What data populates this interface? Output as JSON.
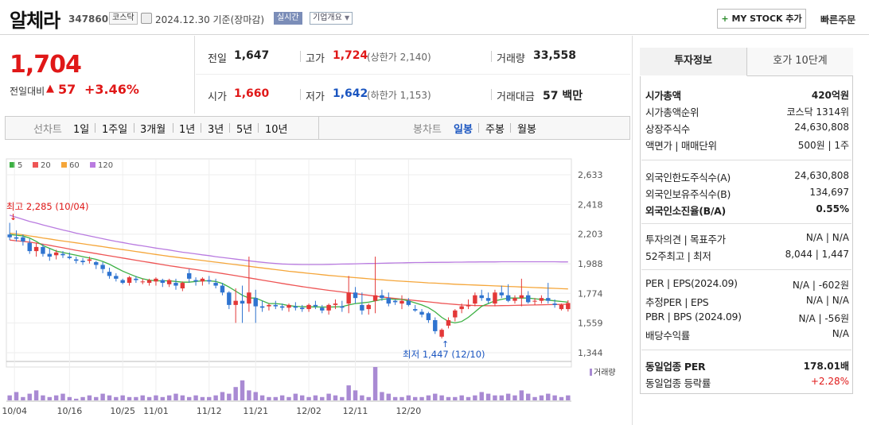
{
  "header": {
    "name": "알체라",
    "code": "347860",
    "market": "코스닥",
    "date": "2024.12.30 기준(장마감)",
    "realtime": "실시간",
    "company": "기업개요",
    "mystock": "MY STOCK 추가",
    "quick_order": "빠른주문"
  },
  "price": {
    "current": "1,704",
    "change_label": "전일대비",
    "change_arrow": "▲",
    "change_value": "57",
    "change_pct": "+3.46%"
  },
  "quote": {
    "prev_label": "전일",
    "prev": "1,647",
    "high_label": "고가",
    "high": "1,724",
    "upper_limit": "(상한가 2,140)",
    "volume_label": "거래량",
    "volume": "33,558",
    "open_label": "시가",
    "open": "1,660",
    "low_label": "저가",
    "low": "1,642",
    "lower_limit": "(하한가 1,153)",
    "amount_label": "거래대금",
    "amount": "57 백만"
  },
  "chart_tabs": {
    "line_label": "선차트",
    "periods": [
      "1일",
      "1주일",
      "3개월",
      "1년",
      "3년",
      "5년",
      "10년"
    ],
    "candle_label": "봉차트",
    "candles": [
      "일봉",
      "주봉",
      "월봉"
    ]
  },
  "legend": [
    "5",
    "20",
    "60",
    "120"
  ],
  "colors": {
    "ma5": "#3cb043",
    "ma20": "#ee5555",
    "ma60": "#f5a63a",
    "ma120": "#b97be0",
    "up": "#e33838",
    "down": "#2f74d0",
    "volume": "#a98ad3"
  },
  "annotations": {
    "high": "최고 2,285 (10/04)",
    "low": "최저 1,447 (12/10)",
    "volume_label": "거래량"
  },
  "chart_data": {
    "type": "candlestick",
    "y_ticks": [
      "2,633",
      "2,418",
      "2,203",
      "1,988",
      "1,774",
      "1,559",
      "1,344"
    ],
    "ylim": [
      1344,
      2633
    ],
    "x_ticks": [
      "10/04",
      "10/16",
      "10/25",
      "11/01",
      "11/12",
      "11/21",
      "12/02",
      "12/11",
      "12/20"
    ],
    "ohlc": [
      [
        2200,
        2285,
        2160,
        2180
      ],
      [
        2180,
        2230,
        2150,
        2170
      ],
      [
        2180,
        2200,
        2120,
        2150
      ],
      [
        2140,
        2170,
        2060,
        2080
      ],
      [
        2080,
        2140,
        2040,
        2110
      ],
      [
        2110,
        2130,
        2040,
        2060
      ],
      [
        2060,
        2100,
        2010,
        2040
      ],
      [
        2050,
        2090,
        2020,
        2070
      ],
      [
        2060,
        2080,
        2030,
        2050
      ],
      [
        2040,
        2070,
        2020,
        2030
      ],
      [
        2020,
        2040,
        1990,
        2010
      ],
      [
        2010,
        2030,
        1980,
        2000
      ],
      [
        2010,
        2040,
        1990,
        2020
      ],
      [
        2000,
        2010,
        1950,
        1980
      ],
      [
        1980,
        2000,
        1920,
        1950
      ],
      [
        1930,
        1960,
        1880,
        1900
      ],
      [
        1900,
        1920,
        1860,
        1880
      ],
      [
        1870,
        1880,
        1840,
        1850
      ],
      [
        1850,
        1900,
        1830,
        1890
      ],
      [
        1880,
        1900,
        1850,
        1870
      ],
      [
        1860,
        1880,
        1840,
        1860
      ],
      [
        1850,
        1880,
        1830,
        1870
      ],
      [
        1860,
        1890,
        1830,
        1880
      ],
      [
        1870,
        1880,
        1820,
        1850
      ],
      [
        1840,
        1880,
        1820,
        1870
      ],
      [
        1850,
        1880,
        1800,
        1830
      ],
      [
        1810,
        1860,
        1790,
        1850
      ],
      [
        1920,
        1950,
        1850,
        1880
      ],
      [
        1870,
        1890,
        1830,
        1860
      ],
      [
        1860,
        1890,
        1830,
        1880
      ],
      [
        1870,
        1900,
        1840,
        1860
      ],
      [
        1850,
        1880,
        1810,
        1830
      ],
      [
        1830,
        1850,
        1760,
        1780
      ],
      [
        1780,
        1790,
        1660,
        1690
      ],
      [
        1690,
        1810,
        1560,
        1720
      ],
      [
        1720,
        1830,
        1560,
        1700
      ],
      [
        1700,
        2040,
        1640,
        1780
      ],
      [
        1740,
        1800,
        1560,
        1680
      ],
      [
        1680,
        1720,
        1640,
        1670
      ],
      [
        1680,
        1700,
        1650,
        1690
      ],
      [
        1690,
        1720,
        1660,
        1680
      ],
      [
        1680,
        1700,
        1650,
        1670
      ],
      [
        1670,
        1700,
        1640,
        1690
      ],
      [
        1680,
        1710,
        1650,
        1670
      ],
      [
        1670,
        1690,
        1640,
        1660
      ],
      [
        1660,
        1700,
        1640,
        1690
      ],
      [
        1690,
        1720,
        1660,
        1680
      ],
      [
        1670,
        1690,
        1630,
        1650
      ],
      [
        1650,
        1700,
        1620,
        1690
      ],
      [
        1690,
        1730,
        1660,
        1700
      ],
      [
        1680,
        1720,
        1640,
        1670
      ],
      [
        1700,
        1900,
        1630,
        1780
      ],
      [
        1780,
        1820,
        1700,
        1740
      ],
      [
        1690,
        1780,
        1620,
        1650
      ],
      [
        1660,
        1700,
        1620,
        1690
      ],
      [
        1720,
        2040,
        1630,
        1760
      ],
      [
        1760,
        1800,
        1720,
        1740
      ],
      [
        1740,
        1780,
        1680,
        1700
      ],
      [
        1720,
        1730,
        1690,
        1710
      ],
      [
        1700,
        1760,
        1660,
        1720
      ],
      [
        1720,
        1740,
        1680,
        1690
      ],
      [
        1660,
        1690,
        1640,
        1650
      ],
      [
        1640,
        1660,
        1600,
        1620
      ],
      [
        1630,
        1640,
        1560,
        1580
      ],
      [
        1580,
        1600,
        1480,
        1500
      ],
      [
        1460,
        1520,
        1447,
        1510
      ],
      [
        1540,
        1600,
        1520,
        1580
      ],
      [
        1600,
        1660,
        1570,
        1650
      ],
      [
        1660,
        1700,
        1630,
        1680
      ],
      [
        1680,
        1730,
        1660,
        1690
      ],
      [
        1700,
        1780,
        1680,
        1760
      ],
      [
        1760,
        1800,
        1720,
        1740
      ],
      [
        1740,
        1780,
        1700,
        1720
      ],
      [
        1700,
        1800,
        1680,
        1780
      ],
      [
        1780,
        1830,
        1740,
        1760
      ],
      [
        1760,
        1840,
        1710,
        1720
      ],
      [
        1720,
        1760,
        1700,
        1740
      ],
      [
        1740,
        1880,
        1680,
        1760
      ],
      [
        1760,
        1790,
        1700,
        1710
      ],
      [
        1720,
        1740,
        1690,
        1720
      ],
      [
        1720,
        1760,
        1700,
        1740
      ],
      [
        1740,
        1850,
        1700,
        1720
      ],
      [
        1700,
        1730,
        1670,
        1690
      ],
      [
        1660,
        1700,
        1650,
        1690
      ],
      [
        1660,
        1724,
        1642,
        1704
      ]
    ],
    "volume": [
      3,
      5,
      2,
      4,
      6,
      3,
      2,
      3,
      4,
      2,
      1,
      2,
      3,
      2,
      4,
      3,
      2,
      3,
      2,
      2,
      3,
      2,
      3,
      2,
      3,
      4,
      3,
      2,
      3,
      2,
      2,
      3,
      5,
      4,
      8,
      12,
      6,
      5,
      3,
      2,
      2,
      3,
      2,
      4,
      3,
      2,
      3,
      2,
      4,
      3,
      2,
      9,
      6,
      3,
      2,
      20,
      5,
      4,
      2,
      2,
      3,
      2,
      2,
      3,
      4,
      3,
      2,
      2,
      3,
      2,
      3,
      5,
      4,
      3,
      3,
      4,
      3,
      6,
      4,
      2,
      3,
      4,
      3,
      2,
      3
    ],
    "ma120": [
      2340,
      2325,
      2310,
      2295,
      2283,
      2270,
      2258,
      2245,
      2233,
      2222,
      2210,
      2200,
      2190,
      2180,
      2170,
      2160,
      2150,
      2142,
      2133,
      2125,
      2118,
      2110,
      2102,
      2095,
      2088,
      2080,
      2072,
      2066,
      2060,
      2053,
      2047,
      2040,
      2034,
      2028,
      2022,
      2016,
      2010,
      2004,
      1999,
      1994,
      1990,
      1987,
      1985,
      1984,
      1983,
      1983,
      1983,
      1983,
      1984,
      1985,
      1986,
      1987,
      1988,
      1989,
      1990,
      1991,
      1992,
      1993,
      1994,
      1995,
      1996,
      1997,
      1997,
      1998,
      1998,
      1999,
      1999,
      2000,
      2000,
      2001,
      2001,
      2002,
      2002,
      2002,
      2003,
      2003,
      2003,
      2003,
      2003,
      2003,
      2003,
      2003,
      2003,
      2002,
      2002
    ],
    "ma60": [
      2210,
      2205,
      2198,
      2190,
      2183,
      2175,
      2168,
      2160,
      2153,
      2147,
      2140,
      2133,
      2126,
      2119,
      2112,
      2105,
      2098,
      2091,
      2084,
      2077,
      2070,
      2063,
      2056,
      2049,
      2042,
      2036,
      2030,
      2024,
      2018,
      2012,
      2006,
      2000,
      1994,
      1988,
      1982,
      1976,
      1970,
      1964,
      1958,
      1952,
      1946,
      1940,
      1934,
      1929,
      1924,
      1919,
      1914,
      1909,
      1904,
      1900,
      1896,
      1892,
      1888,
      1884,
      1880,
      1876,
      1872,
      1868,
      1865,
      1862,
      1859,
      1856,
      1853,
      1850,
      1848,
      1845,
      1843,
      1840,
      1838,
      1836,
      1834,
      1832,
      1830,
      1828,
      1826,
      1824,
      1822,
      1820,
      1818,
      1816,
      1814,
      1812,
      1810,
      1808,
      1806
    ],
    "ma20": [
      2160,
      2155,
      2150,
      2145,
      2138,
      2130,
      2122,
      2113,
      2104,
      2095,
      2086,
      2078,
      2070,
      2062,
      2054,
      2046,
      2038,
      2030,
      2022,
      2014,
      2006,
      1998,
      1990,
      1982,
      1974,
      1967,
      1960,
      1953,
      1946,
      1939,
      1932,
      1925,
      1918,
      1910,
      1902,
      1894,
      1886,
      1878,
      1870,
      1862,
      1854,
      1846,
      1838,
      1830,
      1823,
      1816,
      1809,
      1802,
      1796,
      1790,
      1784,
      1778,
      1772,
      1766,
      1760,
      1754,
      1748,
      1742,
      1737,
      1732,
      1727,
      1722,
      1717,
      1712,
      1707,
      1702,
      1698,
      1694,
      1690,
      1688,
      1686,
      1685,
      1684,
      1684,
      1685,
      1686,
      1687,
      1688,
      1689,
      1690,
      1691,
      1692,
      1693,
      1694,
      1695
    ],
    "ma5": [
      2200,
      2195,
      2190,
      2175,
      2150,
      2120,
      2100,
      2080,
      2070,
      2060,
      2050,
      2040,
      2030,
      2020,
      2005,
      1985,
      1960,
      1935,
      1915,
      1895,
      1880,
      1870,
      1865,
      1865,
      1865,
      1860,
      1855,
      1855,
      1860,
      1865,
      1865,
      1860,
      1845,
      1820,
      1790,
      1760,
      1740,
      1740,
      1720,
      1700,
      1700,
      1695,
      1685,
      1680,
      1678,
      1676,
      1676,
      1675,
      1675,
      1676,
      1678,
      1690,
      1700,
      1705,
      1710,
      1720,
      1730,
      1735,
      1730,
      1730,
      1720,
      1705,
      1690,
      1670,
      1640,
      1600,
      1570,
      1560,
      1570,
      1600,
      1640,
      1680,
      1700,
      1720,
      1730,
      1740,
      1740,
      1740,
      1740,
      1735,
      1730,
      1725,
      1720,
      1715,
      1710
    ]
  },
  "right_panel": {
    "tab_info": "투자정보",
    "tab_orderbook": "호가 10단계",
    "rows1": [
      {
        "k": "시가총액",
        "v": "420억원",
        "bold": true
      },
      {
        "k": "시가총액순위",
        "v": "코스닥 1314위"
      },
      {
        "k": "상장주식수",
        "v": "24,630,808"
      },
      {
        "k": "액면가 | 매매단위",
        "v": "500원 | 1주"
      }
    ],
    "rows2": [
      {
        "k": "외국인한도주식수(A)",
        "v": "24,630,808"
      },
      {
        "k": "외국인보유주식수(B)",
        "v": "134,697"
      },
      {
        "k": "외국인소진율(B/A)",
        "v": "0.55%",
        "bold": true
      }
    ],
    "rows3": [
      {
        "k": "투자의견 | 목표주가",
        "v": "N/A | N/A"
      },
      {
        "k": "52주최고 | 최저",
        "v": "8,044 | 1,447"
      }
    ],
    "rows4": [
      {
        "k": "PER | EPS(2024.09)",
        "v": "N/A | -602원"
      },
      {
        "k": "추정PER | EPS",
        "v": "N/A | N/A"
      },
      {
        "k": "PBR | BPS (2024.09)",
        "v": "N/A | -56원"
      },
      {
        "k": "배당수익률",
        "v": "N/A"
      }
    ],
    "rows5": [
      {
        "k": "동일업종 PER",
        "v": "178.01배",
        "bold": true
      },
      {
        "k": "동일업종 등락률",
        "v": "+2.28%",
        "red": true
      }
    ]
  }
}
